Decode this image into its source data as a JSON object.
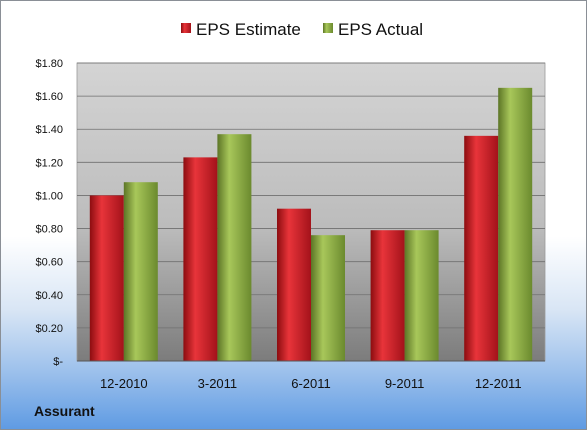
{
  "company": "Assurant",
  "chart_data": {
    "type": "bar",
    "categories": [
      "12-2010",
      "3-2011",
      "6-2011",
      "9-2011",
      "12-2011"
    ],
    "series": [
      {
        "name": "EPS Estimate",
        "values": [
          1.0,
          1.23,
          0.92,
          0.79,
          1.36
        ],
        "color": "#c4161c"
      },
      {
        "name": "EPS Actual",
        "values": [
          1.08,
          1.37,
          0.76,
          0.79,
          1.65
        ],
        "color": "#8aa83c"
      }
    ],
    "ylim": [
      0,
      1.8
    ],
    "yticks": [
      0,
      0.2,
      0.4,
      0.6,
      0.8,
      1.0,
      1.2,
      1.4,
      1.6,
      1.8
    ],
    "ytick_labels": [
      "$-",
      "$0.20",
      "$0.40",
      "$0.60",
      "$0.80",
      "$1.00",
      "$1.20",
      "$1.40",
      "$1.60",
      "$1.80"
    ],
    "legend_position": "top-center",
    "grid": true
  }
}
